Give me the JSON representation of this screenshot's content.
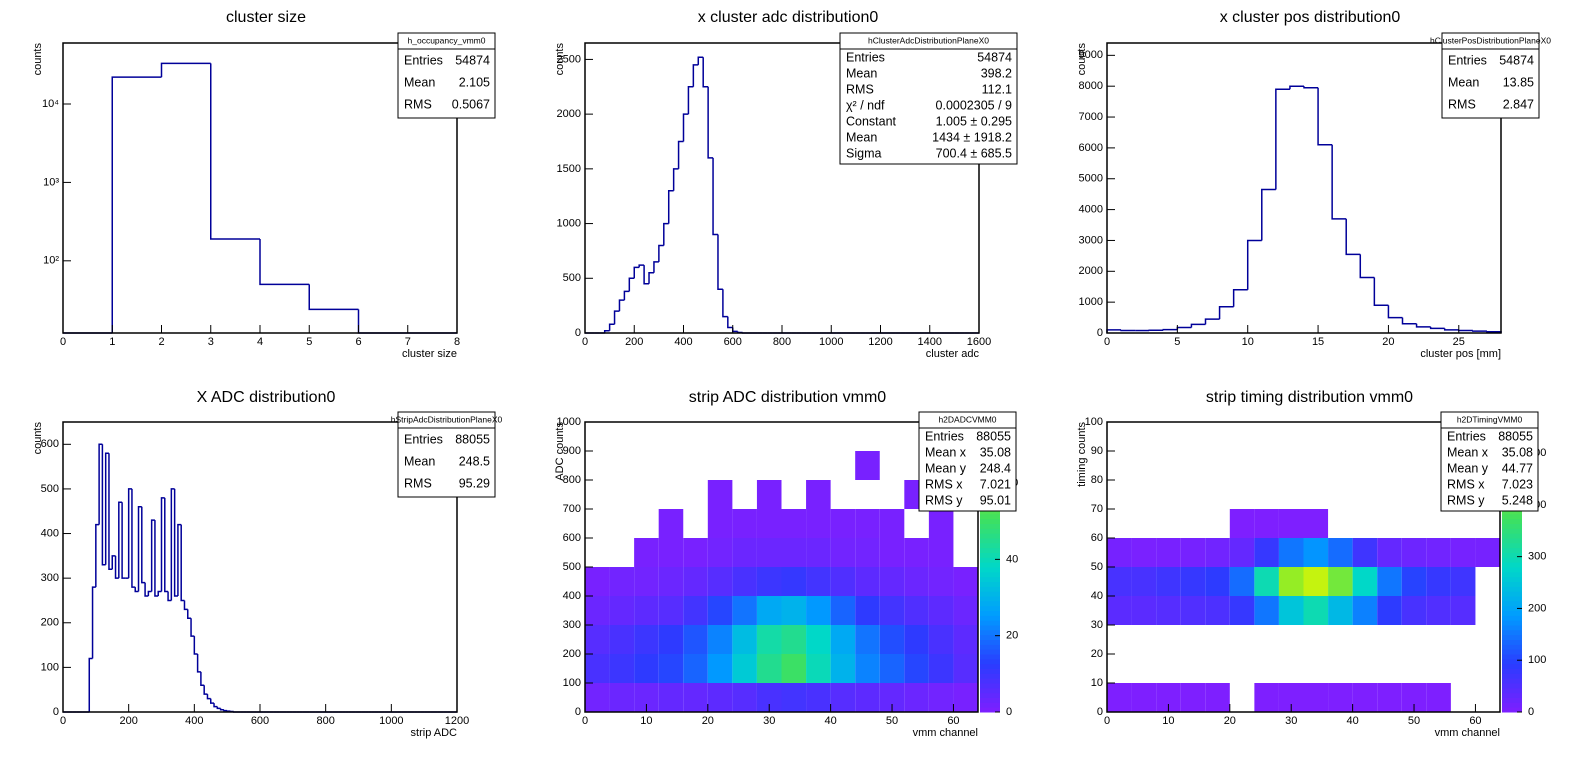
{
  "chart_data": [
    {
      "type": "histogram",
      "title": "cluster size",
      "y_label": "counts",
      "x_label": "cluster size",
      "color": "#000099",
      "log_y": true,
      "bins": [
        0,
        1,
        2,
        3,
        4,
        5,
        6,
        7,
        8
      ],
      "values": [
        0,
        22000,
        33000,
        190,
        50,
        24,
        0,
        0
      ],
      "xlim": [
        0,
        8
      ],
      "xticks": [
        0,
        1,
        2,
        3,
        4,
        5,
        6,
        7,
        8
      ],
      "ylim": [
        12,
        60000
      ],
      "yticks": [
        {
          "value": 100,
          "label": "10²"
        },
        {
          "value": 1000,
          "label": "10³"
        },
        {
          "value": 10000,
          "label": "10⁴"
        }
      ],
      "stats": {
        "title": "h_occupancy_vmm0",
        "rows": [
          [
            "Entries",
            54874
          ],
          [
            "Mean",
            2.105
          ],
          [
            "RMS",
            0.5067
          ]
        ]
      }
    },
    {
      "type": "histogram",
      "title": "x cluster adc distribution0",
      "y_label": "counts",
      "x_label": "cluster adc",
      "color": "#000099",
      "log_y": false,
      "bins": [
        0,
        20,
        40,
        60,
        80,
        100,
        120,
        140,
        160,
        180,
        200,
        220,
        240,
        260,
        280,
        300,
        320,
        340,
        360,
        380,
        400,
        420,
        440,
        460,
        480,
        500,
        520,
        540,
        560,
        580,
        600,
        620,
        640,
        660,
        680,
        700,
        720,
        740,
        760,
        780,
        800,
        820,
        840,
        860,
        880,
        900,
        920,
        940,
        960,
        980,
        1000,
        1020,
        1040,
        1060,
        1080,
        1100,
        1120,
        1140,
        1160,
        1180,
        1200,
        1220,
        1240,
        1260,
        1280,
        1300,
        1320,
        1340,
        1360,
        1380,
        1400,
        1420,
        1440,
        1460,
        1480,
        1500,
        1520,
        1540,
        1560,
        1580,
        1600
      ],
      "values": [
        0,
        0,
        0,
        0,
        20,
        80,
        200,
        300,
        380,
        500,
        600,
        620,
        450,
        550,
        650,
        800,
        1000,
        1300,
        1500,
        1750,
        2000,
        2250,
        2450,
        2520,
        2250,
        1600,
        900,
        400,
        150,
        50,
        15,
        5,
        0,
        0,
        0,
        0,
        0,
        0,
        0,
        0,
        0,
        0,
        0,
        0,
        0,
        0,
        0,
        0,
        0,
        0,
        0,
        0,
        0,
        0,
        0,
        0,
        0,
        0,
        0,
        0,
        0,
        0,
        0,
        0,
        0,
        0,
        0,
        0,
        0,
        0,
        0,
        0,
        0,
        0,
        0,
        0,
        0,
        0,
        0,
        0
      ],
      "xlim": [
        0,
        1600
      ],
      "xticks": [
        0,
        200,
        400,
        600,
        800,
        1000,
        1200,
        1400,
        1600
      ],
      "ylim": [
        0,
        2650
      ],
      "yticks": [
        0,
        500,
        1000,
        1500,
        2000,
        2500
      ],
      "stats": {
        "title": "hClusterAdcDistributionPlaneX0",
        "rows": [
          [
            "Entries",
            54874
          ],
          [
            "Mean",
            398.2
          ],
          [
            "RMS",
            112.1
          ],
          [
            "χ² / ndf",
            "0.0002305 / 9"
          ],
          [
            "Constant",
            "1.005 ± 0.295"
          ],
          [
            "Mean",
            "1434 ± 1918.2"
          ],
          [
            "Sigma",
            "700.4 ± 685.5"
          ]
        ]
      }
    },
    {
      "type": "histogram",
      "title": "x cluster pos distribution0",
      "y_label": "counts",
      "x_label": "cluster pos [mm]",
      "color": "#000099",
      "log_y": false,
      "bins": [
        0,
        1,
        2,
        3,
        4,
        5,
        6,
        7,
        8,
        9,
        10,
        11,
        12,
        13,
        14,
        15,
        16,
        17,
        18,
        19,
        20,
        21,
        22,
        23,
        24,
        25,
        26,
        27,
        28
      ],
      "values": [
        100,
        80,
        80,
        90,
        110,
        180,
        280,
        450,
        850,
        1400,
        3000,
        4650,
        7900,
        8000,
        7950,
        6100,
        3700,
        2550,
        1800,
        900,
        500,
        300,
        200,
        150,
        100,
        80,
        60,
        40
      ],
      "xlim": [
        0,
        28
      ],
      "xticks": [
        0,
        5,
        10,
        15,
        20,
        25
      ],
      "ylim": [
        0,
        9400
      ],
      "yticks": [
        0,
        1000,
        2000,
        3000,
        4000,
        5000,
        6000,
        7000,
        8000,
        9000
      ],
      "stats": {
        "title": "hClusterPosDistributionPlaneX0",
        "rows": [
          [
            "Entries",
            54874
          ],
          [
            "Mean",
            13.85
          ],
          [
            "RMS",
            2.847
          ]
        ]
      }
    },
    {
      "type": "histogram",
      "title": "X ADC distribution0",
      "y_label": "counts",
      "x_label": "strip ADC",
      "color": "#000099",
      "log_y": false,
      "bins": [
        0,
        10,
        20,
        30,
        40,
        50,
        60,
        70,
        80,
        90,
        100,
        110,
        120,
        130,
        140,
        150,
        160,
        170,
        180,
        190,
        200,
        210,
        220,
        230,
        240,
        250,
        260,
        270,
        280,
        290,
        300,
        310,
        320,
        330,
        340,
        350,
        360,
        370,
        380,
        390,
        400,
        410,
        420,
        430,
        440,
        450,
        460,
        470,
        480,
        490,
        500,
        510,
        520,
        530,
        540,
        550,
        560,
        570,
        580,
        590,
        600,
        610,
        620,
        630,
        640,
        650,
        660,
        670,
        680,
        690,
        700,
        710,
        720,
        730,
        740,
        750,
        760,
        770,
        780,
        790,
        800,
        810,
        820,
        830,
        840,
        850,
        860,
        870,
        880,
        890,
        900,
        910,
        920,
        930,
        940,
        950,
        960,
        970,
        980,
        990,
        1000,
        1010,
        1020,
        1030,
        1040,
        1050,
        1060,
        1070,
        1080,
        1090,
        1100,
        1110,
        1120,
        1130,
        1140,
        1150,
        1160,
        1170,
        1180,
        1190,
        1200
      ],
      "values": [
        0,
        0,
        0,
        0,
        0,
        0,
        0,
        0,
        120,
        280,
        420,
        600,
        330,
        580,
        320,
        350,
        300,
        470,
        300,
        300,
        500,
        280,
        270,
        460,
        290,
        260,
        270,
        430,
        260,
        270,
        480,
        270,
        250,
        500,
        260,
        420,
        250,
        230,
        210,
        170,
        130,
        90,
        60,
        40,
        30,
        20,
        12,
        8,
        5,
        3,
        2,
        1,
        0,
        0,
        0,
        0,
        0,
        0,
        0,
        0,
        0,
        0,
        0,
        0,
        0,
        0,
        0,
        0,
        0,
        0,
        0,
        0,
        0,
        0,
        0,
        0,
        0,
        0,
        0,
        0,
        0,
        0,
        0,
        0,
        0,
        0,
        0,
        0,
        0,
        0,
        0,
        0,
        0,
        0,
        0,
        0,
        0,
        0,
        0,
        0,
        0,
        0,
        0,
        0,
        0,
        0,
        0,
        0,
        0,
        0,
        0,
        0,
        0,
        0,
        0,
        0,
        0,
        0,
        0,
        0
      ],
      "xlim": [
        0,
        1200
      ],
      "xticks": [
        0,
        200,
        400,
        600,
        800,
        1000,
        1200
      ],
      "ylim": [
        0,
        650
      ],
      "yticks": [
        0,
        100,
        200,
        300,
        400,
        500,
        600
      ],
      "stats": {
        "title": "hStripAdcDistributionPlaneX0",
        "rows": [
          [
            "Entries",
            88055
          ],
          [
            "Mean",
            248.5
          ],
          [
            "RMS",
            95.29
          ]
        ]
      }
    },
    {
      "type": "heatmap",
      "title": "strip ADC distribution vmm0",
      "y_label": "ADC counts",
      "x_label": "vmm channel",
      "palette": [
        "#7f1fff",
        "#2a3cff",
        "#009cff",
        "#00d8c8",
        "#3ee060",
        "#a8f018",
        "#f8f800"
      ],
      "x_bins": [
        0,
        4,
        8,
        12,
        16,
        20,
        24,
        28,
        32,
        36,
        40,
        44,
        48,
        52,
        56,
        60,
        64
      ],
      "y_bins": [
        0,
        100,
        200,
        300,
        400,
        500,
        600,
        700,
        800,
        900,
        1000
      ],
      "z": [
        [
          2,
          3,
          3,
          4,
          4,
          5,
          6,
          8,
          9,
          8,
          6,
          5,
          4,
          3,
          2,
          1
        ],
        [
          8,
          10,
          12,
          14,
          18,
          25,
          35,
          45,
          50,
          40,
          30,
          22,
          18,
          14,
          10,
          6
        ],
        [
          6,
          8,
          10,
          12,
          16,
          22,
          32,
          42,
          45,
          38,
          28,
          20,
          15,
          12,
          8,
          5
        ],
        [
          3,
          4,
          5,
          6,
          9,
          14,
          20,
          28,
          30,
          25,
          18,
          12,
          9,
          7,
          5,
          3
        ],
        [
          1,
          2,
          2,
          3,
          4,
          6,
          8,
          10,
          11,
          9,
          7,
          5,
          4,
          3,
          2,
          1
        ],
        [
          0,
          0,
          1,
          1,
          1,
          2,
          3,
          3,
          3,
          3,
          2,
          2,
          1,
          1,
          1,
          0
        ],
        [
          0,
          0,
          0,
          1,
          0,
          1,
          1,
          1,
          1,
          1,
          1,
          1,
          1,
          0,
          1,
          0
        ],
        [
          0,
          0,
          0,
          0,
          0,
          1,
          0,
          1,
          0,
          1,
          0,
          0,
          0,
          1,
          0,
          0
        ],
        [
          0,
          0,
          0,
          0,
          0,
          0,
          0,
          0,
          0,
          0,
          0,
          1,
          0,
          0,
          0,
          0
        ],
        [
          0,
          0,
          0,
          0,
          0,
          0,
          0,
          0,
          0,
          0,
          0,
          0,
          0,
          0,
          0,
          0
        ]
      ],
      "xlim": [
        0,
        64
      ],
      "xticks": [
        0,
        10,
        20,
        30,
        40,
        50,
        60
      ],
      "ylim": [
        0,
        1000
      ],
      "yticks": [
        0,
        100,
        200,
        300,
        400,
        500,
        600,
        700,
        800,
        900,
        1000
      ],
      "zlim": [
        0,
        76
      ],
      "zticks": [
        0,
        20,
        40,
        60
      ],
      "stats": {
        "title": "h2DADCVMM0",
        "rows": [
          [
            "Entries",
            88055
          ],
          [
            "Mean x",
            35.08
          ],
          [
            "Mean y",
            248.4
          ],
          [
            "RMS x",
            7.021
          ],
          [
            "RMS y",
            95.01
          ]
        ]
      }
    },
    {
      "type": "heatmap",
      "title": "strip timing distribution vmm0",
      "y_label": "timing counts",
      "x_label": "vmm channel",
      "palette": [
        "#7f1fff",
        "#2a3cff",
        "#009cff",
        "#00d8c8",
        "#3ee060",
        "#a8f018",
        "#f8f800"
      ],
      "x_bins": [
        0,
        4,
        8,
        12,
        16,
        20,
        24,
        28,
        32,
        36,
        40,
        44,
        48,
        52,
        56,
        60,
        64
      ],
      "y_bins": [
        0,
        10,
        20,
        30,
        40,
        50,
        60,
        70,
        80,
        90,
        100
      ],
      "z": [
        [
          1,
          1,
          1,
          1,
          1,
          0,
          1,
          1,
          1,
          1,
          1,
          1,
          1,
          1,
          0,
          0
        ],
        [
          0,
          0,
          0,
          0,
          0,
          0,
          0,
          0,
          0,
          0,
          0,
          0,
          0,
          0,
          0,
          0
        ],
        [
          0,
          0,
          0,
          0,
          0,
          0,
          0,
          0,
          0,
          0,
          0,
          0,
          0,
          0,
          0,
          0
        ],
        [
          40,
          40,
          45,
          50,
          55,
          80,
          150,
          250,
          300,
          230,
          160,
          90,
          60,
          50,
          45,
          0
        ],
        [
          60,
          60,
          70,
          80,
          90,
          140,
          300,
          450,
          500,
          420,
          280,
          150,
          100,
          80,
          70,
          0
        ],
        [
          10,
          5,
          8,
          10,
          15,
          30,
          80,
          150,
          180,
          140,
          70,
          30,
          20,
          15,
          10,
          10
        ],
        [
          0,
          0,
          0,
          0,
          0,
          1,
          1,
          1,
          1,
          0,
          0,
          0,
          0,
          0,
          0,
          0
        ],
        [
          0,
          0,
          0,
          0,
          0,
          0,
          0,
          0,
          0,
          0,
          0,
          0,
          0,
          0,
          0,
          0
        ],
        [
          0,
          0,
          0,
          0,
          0,
          0,
          0,
          0,
          0,
          0,
          0,
          0,
          0,
          0,
          0,
          0
        ],
        [
          0,
          0,
          0,
          0,
          0,
          0,
          0,
          0,
          0,
          0,
          0,
          0,
          0,
          0,
          0,
          0
        ]
      ],
      "xlim": [
        0,
        64
      ],
      "xticks": [
        0,
        10,
        20,
        30,
        40,
        50,
        60
      ],
      "ylim": [
        0,
        100
      ],
      "yticks": [
        0,
        10,
        20,
        30,
        40,
        50,
        60,
        70,
        80,
        90,
        100
      ],
      "zlim": [
        0,
        560
      ],
      "zticks": [
        0,
        100,
        200,
        300,
        400,
        500
      ],
      "stats": {
        "title": "h2DTimingVMM0",
        "rows": [
          [
            "Entries",
            88055
          ],
          [
            "Mean x",
            35.08
          ],
          [
            "Mean y",
            44.77
          ],
          [
            "RMS x",
            7.023
          ],
          [
            "RMS y",
            5.248
          ]
        ]
      }
    }
  ]
}
